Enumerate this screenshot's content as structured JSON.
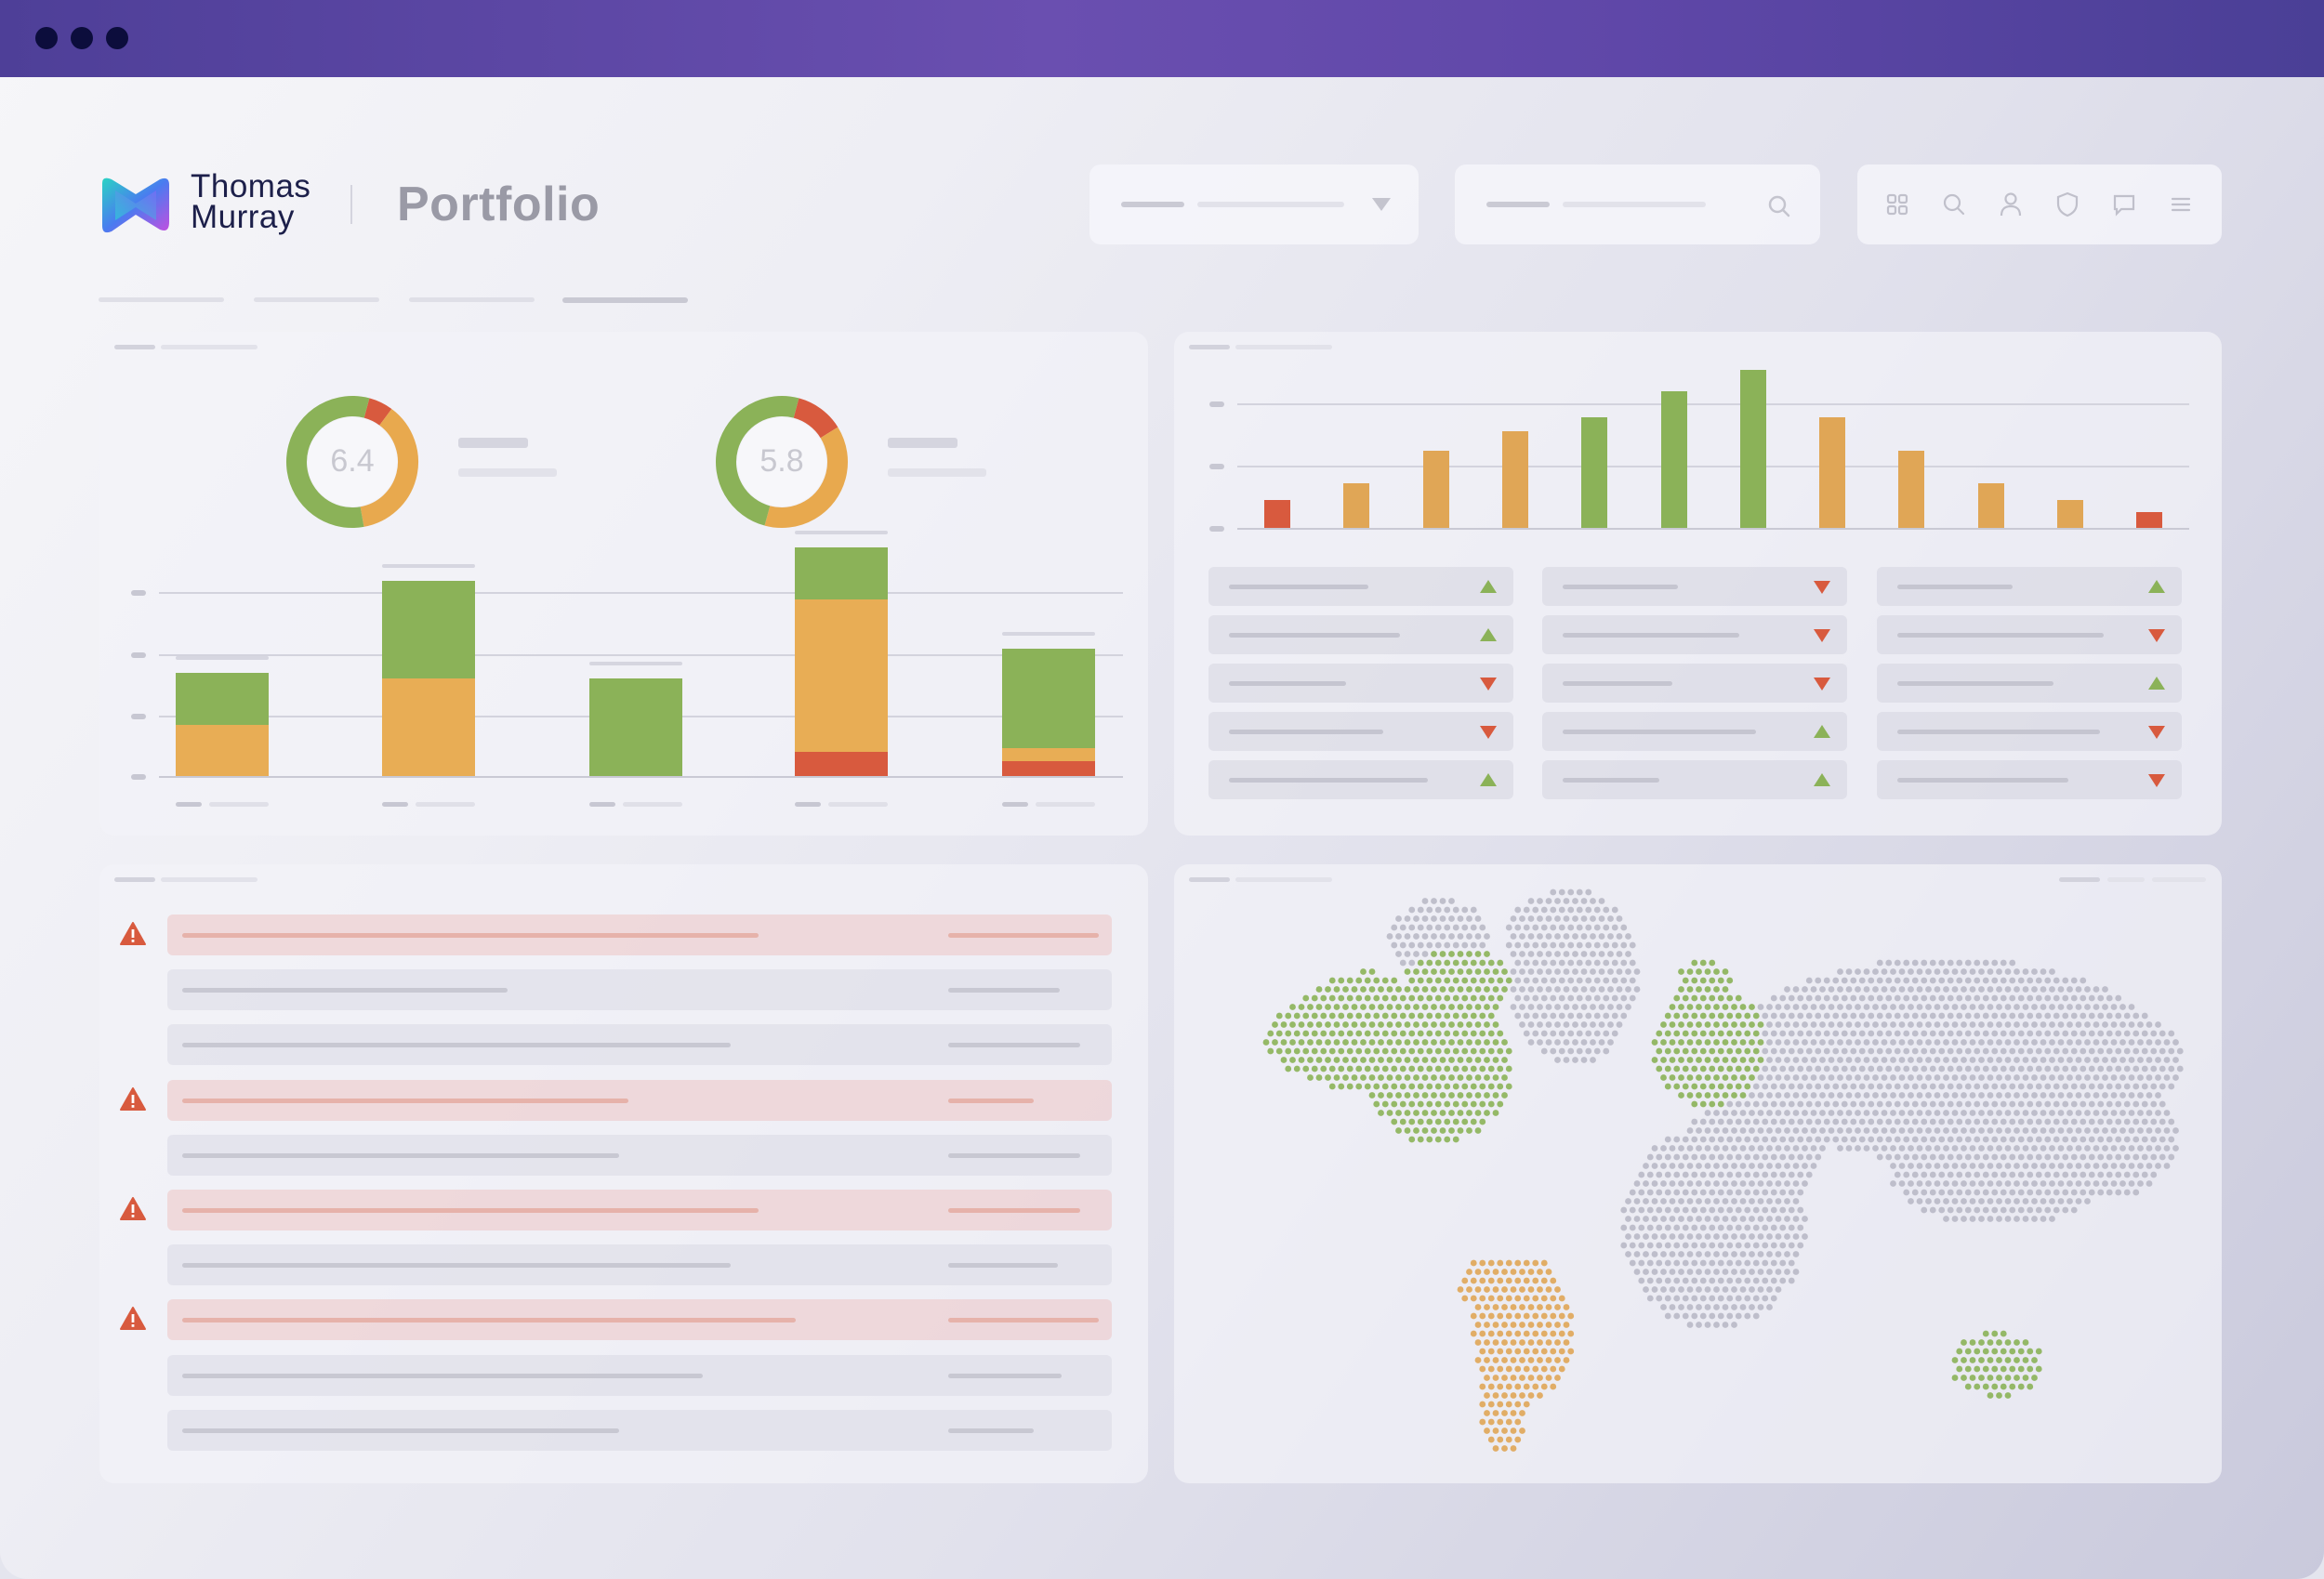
{
  "window": {
    "controls": [
      "close",
      "minimize",
      "maximize"
    ],
    "colors": {
      "titlebar": "#5b46a6",
      "dots": "#0c0d3c"
    }
  },
  "header": {
    "brand_line1": "Thomas",
    "brand_line2": "Murray",
    "page_title": "Portfolio",
    "toolbar_icons": [
      "grid-icon",
      "search-icon",
      "user-icon",
      "shield-icon",
      "chat-icon",
      "menu-icon"
    ]
  },
  "summary_panel": {
    "donuts": [
      {
        "value": "6.4",
        "segments": [
          {
            "color": "#8bb258",
            "fraction": 0.57
          },
          {
            "color": "#e8a94e",
            "fraction": 0.37
          },
          {
            "color": "#d85a3e",
            "fraction": 0.06
          }
        ]
      },
      {
        "value": "5.8",
        "segments": [
          {
            "color": "#8bb258",
            "fraction": 0.5
          },
          {
            "color": "#e8a94e",
            "fraction": 0.38
          },
          {
            "color": "#d85a3e",
            "fraction": 0.12
          }
        ]
      }
    ],
    "stacked_bars": [
      {
        "green": 28,
        "orange": 28,
        "red": 0
      },
      {
        "green": 53,
        "orange": 53,
        "red": 0
      },
      {
        "green": 53,
        "orange": 0,
        "red": 0
      },
      {
        "green": 28,
        "orange": 83,
        "red": 13
      },
      {
        "green": 54,
        "orange": 7,
        "red": 8
      }
    ]
  },
  "distribution_panel": {
    "bars": [
      {
        "value": 18,
        "color": "#d85a3e"
      },
      {
        "value": 29,
        "color": "#e0a656"
      },
      {
        "value": 50,
        "color": "#e0a656"
      },
      {
        "value": 62,
        "color": "#e0a656"
      },
      {
        "value": 71,
        "color": "#8bb258"
      },
      {
        "value": 88,
        "color": "#8bb258"
      },
      {
        "value": 102,
        "color": "#8bb258"
      },
      {
        "value": 71,
        "color": "#e0a656"
      },
      {
        "value": 50,
        "color": "#e0a656"
      },
      {
        "value": 29,
        "color": "#e0a656"
      },
      {
        "value": 18,
        "color": "#e0a656"
      },
      {
        "value": 10,
        "color": "#d85a3e"
      }
    ],
    "trends": [
      [
        "up",
        "up",
        "down",
        "down",
        "up"
      ],
      [
        "down",
        "down",
        "down",
        "up",
        "up"
      ],
      [
        "up",
        "down",
        "up",
        "down",
        "down"
      ]
    ]
  },
  "alerts_panel": {
    "rows": [
      {
        "alert": true
      },
      {
        "alert": false
      },
      {
        "alert": false
      },
      {
        "alert": true
      },
      {
        "alert": false
      },
      {
        "alert": true
      },
      {
        "alert": false
      },
      {
        "alert": true
      },
      {
        "alert": false
      },
      {
        "alert": false
      }
    ]
  },
  "map_panel": {
    "region_colors": {
      "north_america": "#8bb258",
      "europe": "#8bb258",
      "australia": "#8bb258",
      "south_america": "#e0a656",
      "other": "#b9b9c6"
    }
  }
}
